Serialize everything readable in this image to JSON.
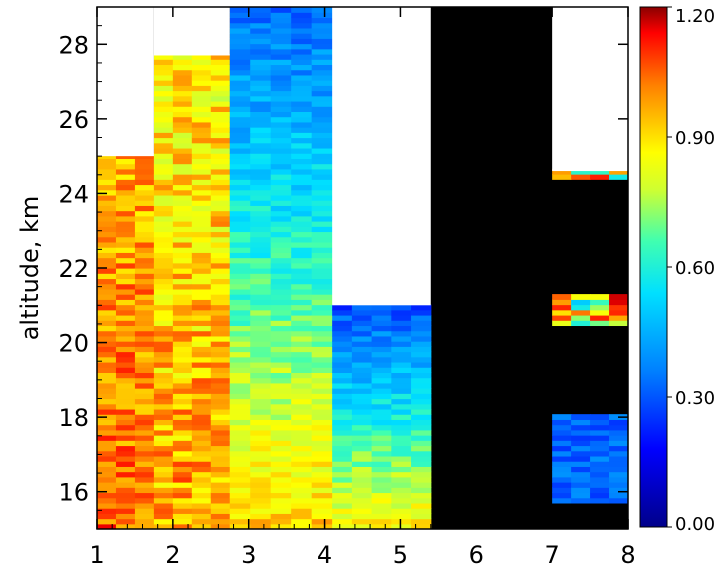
{
  "chart_data": {
    "type": "heatmap",
    "title": "",
    "xlabel": "",
    "ylabel": "altitude, km",
    "xlim": [
      1,
      8
    ],
    "ylim": [
      15,
      29
    ],
    "x_ticks": [
      "1",
      "2",
      "3",
      "4",
      "5",
      "6",
      "7",
      "8"
    ],
    "y_ticks": [
      "16",
      "18",
      "20",
      "22",
      "24",
      "26",
      "28"
    ],
    "colorbar": {
      "range": [
        0.0,
        1.2
      ],
      "ticks": [
        "0.00",
        "0.30",
        "0.60",
        "0.90",
        "1.20"
      ],
      "colormap": "rainbow (dark blue → cyan → yellow → red → white)"
    },
    "no_data_color": "#ffffff",
    "zero_color": "#000000",
    "grid": false,
    "values_by_x_band": [
      {
        "x_range": [
          1.0,
          1.75
        ],
        "value_range": [
          0.85,
          1.15
        ],
        "top_km": 25.0
      },
      {
        "x_range": [
          1.75,
          2.75
        ],
        "value_range": [
          0.75,
          1.1
        ],
        "top_km": 27.7
      },
      {
        "x_range": [
          2.75,
          4.1
        ],
        "value_range": [
          0.25,
          1.0
        ],
        "top_km": 29.0
      },
      {
        "x_range": [
          4.1,
          5.4
        ],
        "value_range": [
          0.2,
          0.95
        ],
        "top_km": 21.0
      },
      {
        "x_range": [
          5.4,
          7.0
        ],
        "value_range": [
          0.0,
          0.0
        ],
        "top_km": 29.0
      },
      {
        "x_range": [
          7.0,
          8.0
        ],
        "value_range": [
          0.0,
          1.2
        ],
        "top_km": 24.6
      }
    ]
  }
}
